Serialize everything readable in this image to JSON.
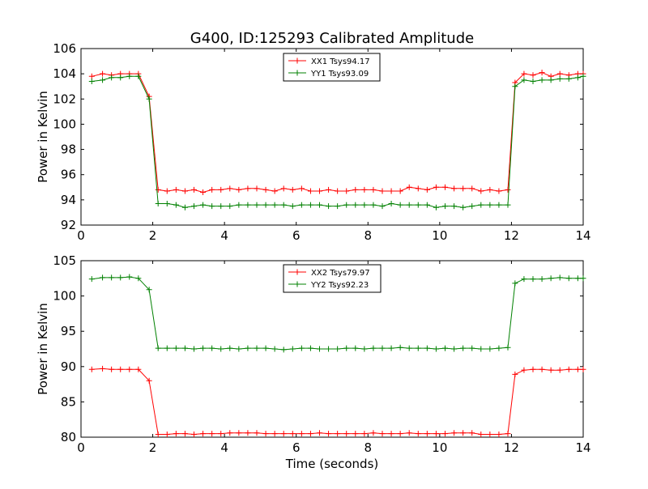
{
  "title": "G400, ID:125293 Calibrated Amplitude",
  "chart_data": [
    {
      "type": "line",
      "xlabel": "",
      "ylabel": "Power in Kelvin",
      "xlim": [
        0,
        14
      ],
      "ylim": [
        92,
        106
      ],
      "xticks": [
        "0",
        "2",
        "4",
        "6",
        "8",
        "10",
        "12",
        "14"
      ],
      "yticks": [
        "92",
        "94",
        "96",
        "98",
        "100",
        "102",
        "104",
        "106"
      ],
      "grid": false,
      "legend_position": "top-center",
      "x": [
        0.3,
        0.6,
        0.85,
        1.1,
        1.35,
        1.6,
        1.9,
        2.15,
        2.4,
        2.65,
        2.9,
        3.15,
        3.4,
        3.65,
        3.9,
        4.15,
        4.4,
        4.65,
        4.9,
        5.15,
        5.4,
        5.65,
        5.9,
        6.15,
        6.4,
        6.65,
        6.9,
        7.15,
        7.4,
        7.65,
        7.9,
        8.15,
        8.4,
        8.65,
        8.9,
        9.15,
        9.4,
        9.65,
        9.9,
        10.15,
        10.4,
        10.65,
        10.9,
        11.15,
        11.4,
        11.65,
        11.9,
        12.1,
        12.35,
        12.6,
        12.85,
        13.1,
        13.35,
        13.6,
        13.85,
        14.0
      ],
      "series": [
        {
          "name": "XX1 Tsys94.17",
          "color": "#ff0000",
          "values": [
            103.8,
            104.0,
            103.9,
            104.0,
            104.0,
            104.0,
            102.2,
            94.8,
            94.7,
            94.8,
            94.7,
            94.8,
            94.6,
            94.8,
            94.8,
            94.9,
            94.8,
            94.9,
            94.9,
            94.8,
            94.7,
            94.9,
            94.8,
            94.9,
            94.7,
            94.7,
            94.8,
            94.7,
            94.7,
            94.8,
            94.8,
            94.8,
            94.7,
            94.7,
            94.7,
            95.0,
            94.9,
            94.8,
            95.0,
            95.0,
            94.9,
            94.9,
            94.9,
            94.7,
            94.8,
            94.7,
            94.8,
            103.3,
            104.0,
            103.9,
            104.1,
            103.8,
            104.0,
            103.9,
            104.0,
            104.0
          ]
        },
        {
          "name": "YY1 Tsys93.09",
          "color": "#008000",
          "values": [
            103.4,
            103.5,
            103.7,
            103.7,
            103.8,
            103.8,
            102.0,
            93.7,
            93.7,
            93.6,
            93.4,
            93.5,
            93.6,
            93.5,
            93.5,
            93.5,
            93.6,
            93.6,
            93.6,
            93.6,
            93.6,
            93.6,
            93.5,
            93.6,
            93.6,
            93.6,
            93.5,
            93.5,
            93.6,
            93.6,
            93.6,
            93.6,
            93.5,
            93.7,
            93.6,
            93.6,
            93.6,
            93.6,
            93.4,
            93.5,
            93.5,
            93.4,
            93.5,
            93.6,
            93.6,
            93.6,
            93.6,
            103.0,
            103.5,
            103.4,
            103.5,
            103.5,
            103.6,
            103.6,
            103.7,
            103.8
          ]
        }
      ]
    },
    {
      "type": "line",
      "xlabel": "Time (seconds)",
      "ylabel": "Power in Kelvin",
      "xlim": [
        0,
        14
      ],
      "ylim": [
        80,
        105
      ],
      "xticks": [
        "0",
        "2",
        "4",
        "6",
        "8",
        "10",
        "12",
        "14"
      ],
      "yticks": [
        "80",
        "85",
        "90",
        "95",
        "100",
        "105"
      ],
      "grid": false,
      "legend_position": "top-center",
      "x": [
        0.3,
        0.6,
        0.85,
        1.1,
        1.35,
        1.6,
        1.9,
        2.15,
        2.4,
        2.65,
        2.9,
        3.15,
        3.4,
        3.65,
        3.9,
        4.15,
        4.4,
        4.65,
        4.9,
        5.15,
        5.4,
        5.65,
        5.9,
        6.15,
        6.4,
        6.65,
        6.9,
        7.15,
        7.4,
        7.65,
        7.9,
        8.15,
        8.4,
        8.65,
        8.9,
        9.15,
        9.4,
        9.65,
        9.9,
        10.15,
        10.4,
        10.65,
        10.9,
        11.15,
        11.4,
        11.65,
        11.9,
        12.1,
        12.35,
        12.6,
        12.85,
        13.1,
        13.35,
        13.6,
        13.85,
        14.0
      ],
      "series": [
        {
          "name": "XX2 Tsys79.97",
          "color": "#ff0000",
          "values": [
            89.6,
            89.7,
            89.6,
            89.6,
            89.6,
            89.6,
            88.0,
            80.4,
            80.4,
            80.5,
            80.5,
            80.4,
            80.5,
            80.5,
            80.5,
            80.6,
            80.6,
            80.6,
            80.6,
            80.5,
            80.5,
            80.5,
            80.5,
            80.5,
            80.5,
            80.6,
            80.5,
            80.5,
            80.5,
            80.5,
            80.5,
            80.6,
            80.5,
            80.5,
            80.5,
            80.6,
            80.5,
            80.5,
            80.5,
            80.5,
            80.6,
            80.6,
            80.6,
            80.4,
            80.4,
            80.4,
            80.5,
            88.9,
            89.5,
            89.6,
            89.6,
            89.5,
            89.5,
            89.6,
            89.6,
            89.6
          ]
        },
        {
          "name": "YY2 Tsys92.23",
          "color": "#008000",
          "values": [
            102.4,
            102.6,
            102.6,
            102.6,
            102.7,
            102.5,
            100.9,
            92.6,
            92.6,
            92.6,
            92.6,
            92.5,
            92.6,
            92.6,
            92.5,
            92.6,
            92.5,
            92.6,
            92.6,
            92.6,
            92.5,
            92.4,
            92.5,
            92.6,
            92.6,
            92.5,
            92.5,
            92.5,
            92.6,
            92.6,
            92.5,
            92.6,
            92.6,
            92.6,
            92.7,
            92.6,
            92.6,
            92.6,
            92.5,
            92.6,
            92.5,
            92.6,
            92.6,
            92.5,
            92.5,
            92.6,
            92.7,
            101.8,
            102.4,
            102.4,
            102.4,
            102.5,
            102.6,
            102.5,
            102.5,
            102.5
          ]
        }
      ]
    }
  ]
}
